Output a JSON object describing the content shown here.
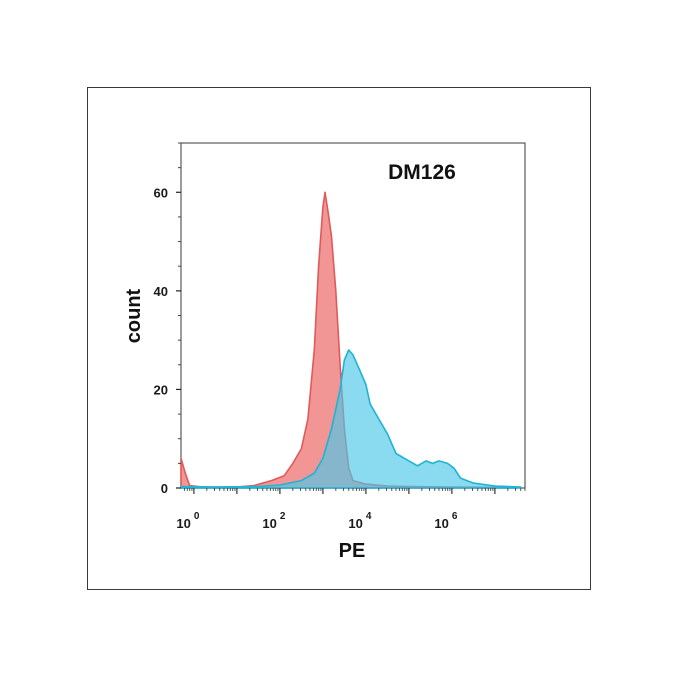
{
  "chart_data": {
    "type": "area",
    "title": "DM126",
    "xlabel": "PE",
    "ylabel": "count",
    "x_scale": "log",
    "x_range_exponent": [
      -0.3,
      7.7
    ],
    "ylim": [
      0,
      70
    ],
    "x_ticks": [
      {
        "base": "10",
        "exp": "0",
        "log": 0
      },
      {
        "base": "10",
        "exp": "2",
        "log": 2
      },
      {
        "base": "10",
        "exp": "4",
        "log": 4
      },
      {
        "base": "10",
        "exp": "6",
        "log": 6
      }
    ],
    "y_ticks": [
      {
        "label": "0",
        "value": 0
      },
      {
        "label": "20",
        "value": 20
      },
      {
        "label": "40",
        "value": 40
      },
      {
        "label": "60",
        "value": 60
      }
    ],
    "grid": false,
    "legend": "none",
    "series": [
      {
        "color": "#e05a5a",
        "fill": "#f08a8a",
        "points": [
          [
            -0.3,
            6
          ],
          [
            -0.2,
            3
          ],
          [
            -0.1,
            0.5
          ],
          [
            0.2,
            0.2
          ],
          [
            1.0,
            0.2
          ],
          [
            1.4,
            0.5
          ],
          [
            1.8,
            1.5
          ],
          [
            2.1,
            2.5
          ],
          [
            2.3,
            5
          ],
          [
            2.5,
            8
          ],
          [
            2.65,
            14
          ],
          [
            2.8,
            28
          ],
          [
            2.9,
            45
          ],
          [
            3.0,
            57
          ],
          [
            3.05,
            60
          ],
          [
            3.12,
            56
          ],
          [
            3.2,
            51
          ],
          [
            3.3,
            40
          ],
          [
            3.4,
            25
          ],
          [
            3.5,
            12
          ],
          [
            3.6,
            4
          ],
          [
            3.7,
            1.5
          ],
          [
            4.0,
            0.8
          ],
          [
            4.5,
            0.4
          ],
          [
            5.0,
            0.3
          ],
          [
            6.0,
            0.2
          ],
          [
            7.5,
            0.1
          ]
        ]
      },
      {
        "color": "#1fb3d4",
        "fill": "#4cc8e8",
        "points": [
          [
            -0.3,
            0.3
          ],
          [
            0.5,
            0.2
          ],
          [
            1.5,
            0.3
          ],
          [
            2.0,
            0.6
          ],
          [
            2.5,
            1.5
          ],
          [
            2.8,
            3
          ],
          [
            3.0,
            6
          ],
          [
            3.2,
            12
          ],
          [
            3.4,
            20
          ],
          [
            3.5,
            26
          ],
          [
            3.6,
            28
          ],
          [
            3.7,
            27
          ],
          [
            3.85,
            24
          ],
          [
            4.0,
            21
          ],
          [
            4.1,
            17
          ],
          [
            4.3,
            14
          ],
          [
            4.5,
            11
          ],
          [
            4.7,
            7
          ],
          [
            5.0,
            5.5
          ],
          [
            5.2,
            4.5
          ],
          [
            5.4,
            5.5
          ],
          [
            5.55,
            5
          ],
          [
            5.7,
            5.5
          ],
          [
            5.9,
            5
          ],
          [
            6.05,
            4
          ],
          [
            6.2,
            2
          ],
          [
            6.5,
            1
          ],
          [
            7.0,
            0.4
          ],
          [
            7.6,
            0.2
          ]
        ]
      }
    ]
  }
}
